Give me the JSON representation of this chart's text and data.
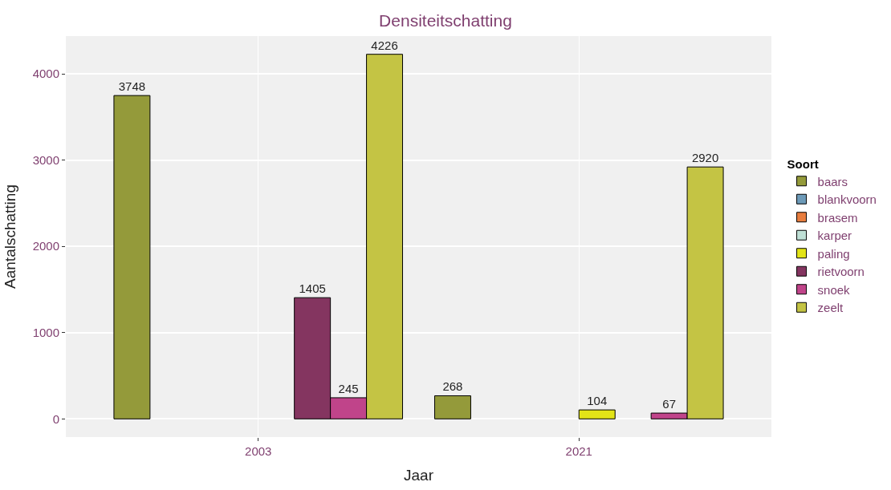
{
  "chart_data": {
    "type": "bar",
    "title": "Densiteitschatting",
    "xlabel": "Jaar",
    "ylabel": "Aantalschatting",
    "legend_title": "Soort",
    "categories": [
      "2003",
      "2021"
    ],
    "series": [
      {
        "name": "baars",
        "color": "#949a3a",
        "values": [
          3748,
          268
        ]
      },
      {
        "name": "blankvoorn",
        "color": "#6d9ab8",
        "values": [
          null,
          null
        ]
      },
      {
        "name": "brasem",
        "color": "#e87d3e",
        "values": [
          null,
          null
        ]
      },
      {
        "name": "karper",
        "color": "#bfe0d6",
        "values": [
          null,
          null
        ]
      },
      {
        "name": "paling",
        "color": "#e3e417",
        "values": [
          null,
          104
        ]
      },
      {
        "name": "rietvoorn",
        "color": "#843560",
        "values": [
          1405,
          null
        ]
      },
      {
        "name": "snoek",
        "color": "#c0448a",
        "values": [
          245,
          67
        ]
      },
      {
        "name": "zeelt",
        "color": "#c4c444",
        "values": [
          4226,
          2920
        ]
      }
    ],
    "ylim": [
      -211,
      4437
    ],
    "yticks": [
      0,
      1000,
      2000,
      3000,
      4000
    ],
    "grid": true,
    "legend": "right",
    "data_labels": true
  }
}
